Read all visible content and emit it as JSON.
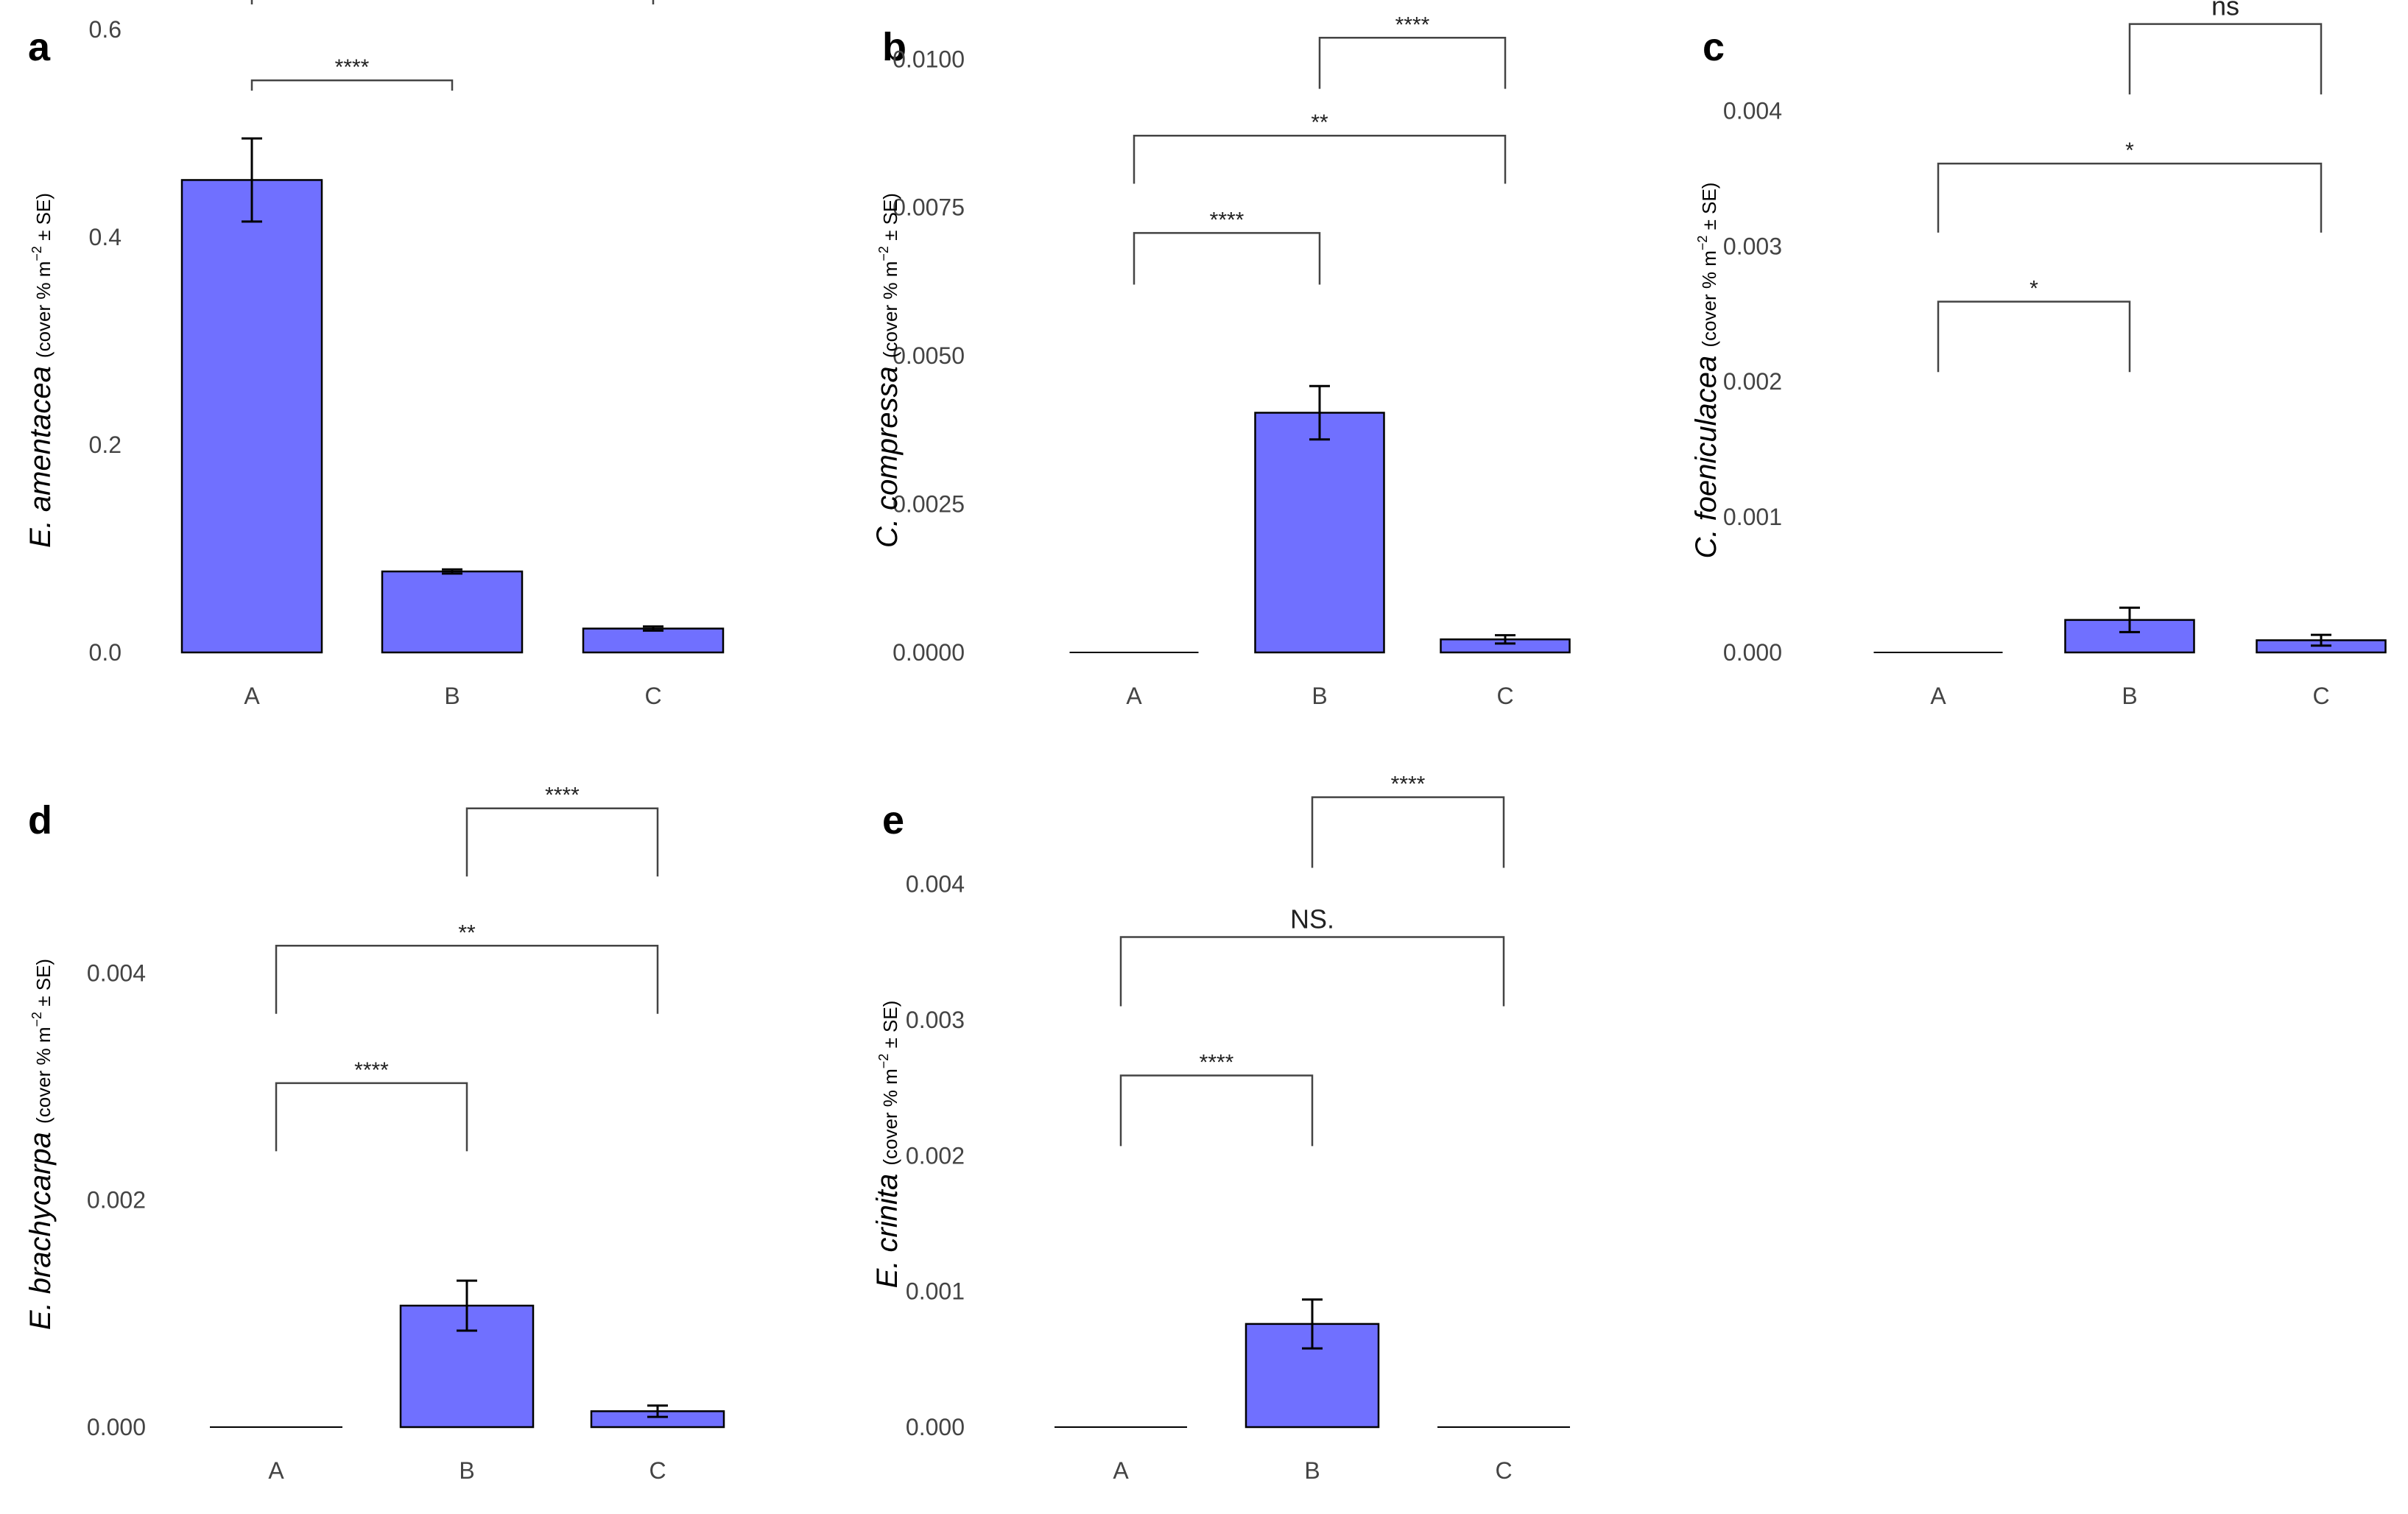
{
  "chart_data": [
    {
      "type": "bar",
      "panel": "a",
      "categories": [
        "A",
        "B",
        "C"
      ],
      "values": [
        0.455,
        0.078,
        0.023
      ],
      "errors": [
        0.04,
        0.002,
        0.002
      ],
      "ylabel": {
        "species": "E. amentacea",
        "unit_pre": "(cover % m",
        "unit_sup": "−2",
        "unit_post": " ± SE)"
      },
      "ylim": [
        0,
        0.6
      ],
      "yticks": [
        0.0,
        0.2,
        0.4,
        0.6
      ],
      "ytick_labels": [
        "0.0",
        "0.2",
        "0.4",
        "0.6"
      ],
      "brackets": [
        {
          "from": 0,
          "to": 1,
          "y": 0.551,
          "drop": 0.551,
          "label": "****"
        },
        {
          "from": 0,
          "to": 2,
          "y": 0.634,
          "drop": 0.634,
          "label": "****"
        },
        {
          "from": 1,
          "to": 2,
          "y": 0.716,
          "drop": 0.716,
          "label": "****"
        }
      ],
      "bar_color": "#7070ff",
      "grid": false
    },
    {
      "type": "bar",
      "panel": "b",
      "categories": [
        "A",
        "B",
        "C"
      ],
      "values": [
        0.0,
        0.00404,
        0.00022
      ],
      "errors": [
        0.0,
        0.00045,
        7e-05
      ],
      "ylabel": {
        "species": "C. compressa",
        "unit_pre": "(cover % m",
        "unit_sup": "−2",
        "unit_post": " ± SE)"
      },
      "ylim": [
        0,
        0.0105
      ],
      "yticks": [
        0.0,
        0.0025,
        0.005,
        0.0075,
        0.01
      ],
      "ytick_labels": [
        "0.0000",
        "0.0025",
        "0.0050",
        "0.0075",
        "0.0100"
      ],
      "brackets": [
        {
          "from": 0,
          "to": 1,
          "y": 0.00707,
          "drop": 0.0062,
          "label": "****"
        },
        {
          "from": 0,
          "to": 2,
          "y": 0.00871,
          "drop": 0.0079,
          "label": "**"
        },
        {
          "from": 1,
          "to": 2,
          "y": 0.01036,
          "drop": 0.0095,
          "label": "****"
        }
      ],
      "bar_color": "#7070ff",
      "grid": false
    },
    {
      "type": "bar",
      "panel": "c",
      "categories": [
        "A",
        "B",
        "C"
      ],
      "values": [
        0.0,
        0.00024,
        9e-05
      ],
      "errors": [
        0.0,
        9e-05,
        4e-05
      ],
      "ylabel": {
        "species": "C. foeniculacea",
        "unit_pre": "(cover % m",
        "unit_sup": "−2",
        "unit_post": " ± SE)"
      },
      "ylim": [
        0,
        0.0046
      ],
      "yticks": [
        0.0,
        0.001,
        0.002,
        0.003,
        0.004
      ],
      "ytick_labels": [
        "0.000",
        "0.001",
        "0.002",
        "0.003",
        "0.004"
      ],
      "brackets": [
        {
          "from": 0,
          "to": 1,
          "y": 0.00259,
          "drop": 0.00207,
          "label": "*"
        },
        {
          "from": 0,
          "to": 2,
          "y": 0.00361,
          "drop": 0.0031,
          "label": "*"
        },
        {
          "from": 1,
          "to": 2,
          "y": 0.00464,
          "drop": 0.00412,
          "label": "ns"
        }
      ],
      "bar_color": "#7070ff",
      "grid": false
    },
    {
      "type": "bar",
      "panel": "d",
      "categories": [
        "A",
        "B",
        "C"
      ],
      "values": [
        0.0,
        0.00107,
        0.00014
      ],
      "errors": [
        0.0,
        0.00022,
        5e-05
      ],
      "ylabel": {
        "species": "E. brachycarpa",
        "unit_pre": "(cover % m",
        "unit_sup": "−2",
        "unit_post": " ± SE)"
      },
      "ylim": [
        0,
        0.0055
      ],
      "yticks": [
        0.0,
        0.002,
        0.004
      ],
      "ytick_labels": [
        "0.000",
        "0.002",
        "0.004"
      ],
      "brackets": [
        {
          "from": 0,
          "to": 1,
          "y": 0.00303,
          "drop": 0.00243,
          "label": "****"
        },
        {
          "from": 0,
          "to": 2,
          "y": 0.00424,
          "drop": 0.00364,
          "label": "**"
        },
        {
          "from": 1,
          "to": 2,
          "y": 0.00545,
          "drop": 0.00485,
          "label": "****"
        }
      ],
      "bar_color": "#7070ff",
      "grid": false
    },
    {
      "type": "bar",
      "panel": "e",
      "categories": [
        "A",
        "B",
        "C"
      ],
      "values": [
        0.0,
        0.00076,
        0.0
      ],
      "errors": [
        0.0,
        0.00018,
        0.0
      ],
      "ylabel": {
        "species": "E. crinita",
        "unit_pre": "(cover % m",
        "unit_sup": "−2",
        "unit_post": " ± SE)"
      },
      "ylim": [
        0,
        0.0046
      ],
      "yticks": [
        0.0,
        0.001,
        0.002,
        0.003,
        0.004
      ],
      "ytick_labels": [
        "0.000",
        "0.001",
        "0.002",
        "0.003",
        "0.004"
      ],
      "brackets": [
        {
          "from": 0,
          "to": 1,
          "y": 0.00259,
          "drop": 0.00207,
          "label": "****"
        },
        {
          "from": 0,
          "to": 2,
          "y": 0.00361,
          "drop": 0.0031,
          "label": "NS."
        },
        {
          "from": 1,
          "to": 2,
          "y": 0.00464,
          "drop": 0.00412,
          "label": "****"
        }
      ],
      "bar_color": "#7070ff",
      "grid": false
    }
  ]
}
